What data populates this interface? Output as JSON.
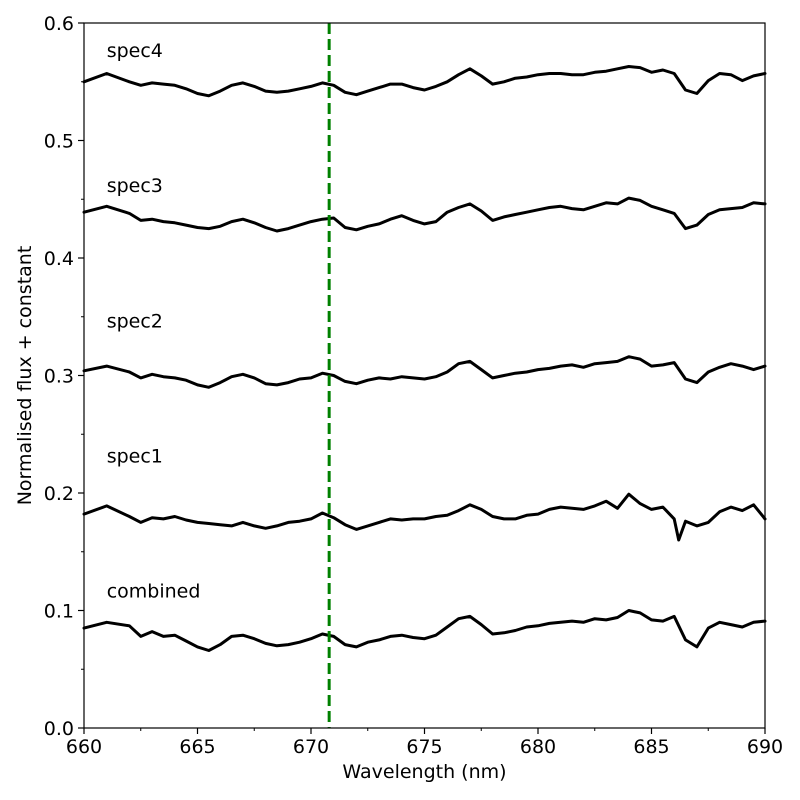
{
  "chart_data": {
    "type": "line",
    "title": "",
    "xlabel": "Wavelength (nm)",
    "ylabel": "Normalised flux + constant",
    "xlim": [
      660,
      690
    ],
    "ylim": [
      0.0,
      0.6
    ],
    "xticks": [
      660,
      665,
      670,
      675,
      680,
      685,
      690
    ],
    "xtick_labels": [
      "660",
      "665",
      "670",
      "675",
      "680",
      "685",
      "690"
    ],
    "yticks": [
      0.0,
      0.1,
      0.2,
      0.3,
      0.4,
      0.5,
      0.6
    ],
    "ytick_labels": [
      "0.0",
      "0.1",
      "0.2",
      "0.3",
      "0.4",
      "0.5",
      "0.6"
    ],
    "grid": false,
    "legend": "none",
    "line_color": "#000000",
    "vline": {
      "x": 670.8,
      "color": "#008000",
      "style": "dashed"
    },
    "series": [
      {
        "name": "combined",
        "label_at": [
          661,
          0.117
        ],
        "x": [
          660,
          661,
          662,
          662.5,
          663,
          663.5,
          664,
          664.5,
          665,
          665.5,
          666,
          666.5,
          667,
          667.5,
          668,
          668.5,
          669,
          669.5,
          670,
          670.5,
          671,
          671.5,
          672,
          672.5,
          673,
          673.5,
          674,
          674.5,
          675,
          675.5,
          676,
          676.5,
          677,
          677.5,
          678,
          678.5,
          679,
          679.5,
          680,
          680.5,
          681,
          681.5,
          682,
          682.5,
          683,
          683.5,
          684,
          684.5,
          685,
          685.5,
          686,
          686.5,
          687,
          687.5,
          688,
          688.5,
          689,
          689.5,
          690
        ],
        "y": [
          0.085,
          0.09,
          0.087,
          0.078,
          0.082,
          0.078,
          0.079,
          0.074,
          0.069,
          0.066,
          0.071,
          0.078,
          0.079,
          0.076,
          0.072,
          0.07,
          0.071,
          0.073,
          0.076,
          0.08,
          0.078,
          0.071,
          0.069,
          0.073,
          0.075,
          0.078,
          0.079,
          0.077,
          0.076,
          0.079,
          0.086,
          0.093,
          0.095,
          0.088,
          0.08,
          0.081,
          0.083,
          0.086,
          0.087,
          0.089,
          0.09,
          0.091,
          0.09,
          0.093,
          0.092,
          0.094,
          0.1,
          0.098,
          0.092,
          0.091,
          0.095,
          0.075,
          0.069,
          0.085,
          0.09,
          0.088,
          0.086,
          0.09,
          0.091
        ]
      },
      {
        "name": "spec1",
        "label_at": [
          661,
          0.232
        ],
        "x": [
          660,
          661,
          662,
          662.5,
          663,
          663.5,
          664,
          664.5,
          665,
          665.5,
          666,
          666.5,
          667,
          667.5,
          668,
          668.5,
          669,
          669.5,
          670,
          670.5,
          671,
          671.5,
          672,
          672.5,
          673,
          673.5,
          674,
          674.5,
          675,
          675.5,
          676,
          676.5,
          677,
          677.5,
          678,
          678.5,
          679,
          679.5,
          680,
          680.5,
          681,
          681.5,
          682,
          682.5,
          683,
          683.5,
          684,
          684.5,
          685,
          685.5,
          686,
          686.2,
          686.5,
          687,
          687.5,
          688,
          688.5,
          689,
          689.5,
          690
        ],
        "y": [
          0.182,
          0.189,
          0.18,
          0.175,
          0.179,
          0.178,
          0.18,
          0.177,
          0.175,
          0.174,
          0.173,
          0.172,
          0.175,
          0.172,
          0.17,
          0.172,
          0.175,
          0.176,
          0.178,
          0.183,
          0.179,
          0.173,
          0.169,
          0.172,
          0.175,
          0.178,
          0.177,
          0.178,
          0.178,
          0.18,
          0.181,
          0.185,
          0.19,
          0.186,
          0.18,
          0.178,
          0.178,
          0.181,
          0.182,
          0.186,
          0.188,
          0.187,
          0.186,
          0.189,
          0.193,
          0.187,
          0.199,
          0.191,
          0.186,
          0.188,
          0.178,
          0.16,
          0.176,
          0.172,
          0.175,
          0.184,
          0.188,
          0.185,
          0.19,
          0.178
        ]
      },
      {
        "name": "spec2",
        "label_at": [
          661,
          0.347
        ],
        "x": [
          660,
          661,
          662,
          662.5,
          663,
          663.5,
          664,
          664.5,
          665,
          665.5,
          666,
          666.5,
          667,
          667.5,
          668,
          668.5,
          669,
          669.5,
          670,
          670.5,
          671,
          671.5,
          672,
          672.5,
          673,
          673.5,
          674,
          674.5,
          675,
          675.5,
          676,
          676.5,
          677,
          677.5,
          678,
          678.5,
          679,
          679.5,
          680,
          680.5,
          681,
          681.5,
          682,
          682.5,
          683,
          683.5,
          684,
          684.5,
          685,
          685.5,
          686,
          686.5,
          687,
          687.5,
          688,
          688.5,
          689,
          689.5,
          690
        ],
        "y": [
          0.304,
          0.308,
          0.303,
          0.298,
          0.301,
          0.299,
          0.298,
          0.296,
          0.292,
          0.29,
          0.294,
          0.299,
          0.301,
          0.298,
          0.293,
          0.292,
          0.294,
          0.297,
          0.298,
          0.302,
          0.3,
          0.295,
          0.293,
          0.296,
          0.298,
          0.297,
          0.299,
          0.298,
          0.297,
          0.299,
          0.303,
          0.31,
          0.312,
          0.305,
          0.298,
          0.3,
          0.302,
          0.303,
          0.305,
          0.306,
          0.308,
          0.309,
          0.307,
          0.31,
          0.311,
          0.312,
          0.316,
          0.314,
          0.308,
          0.309,
          0.311,
          0.297,
          0.294,
          0.303,
          0.307,
          0.31,
          0.308,
          0.305,
          0.308
        ]
      },
      {
        "name": "spec3",
        "label_at": [
          661,
          0.462
        ],
        "x": [
          660,
          661,
          662,
          662.5,
          663,
          663.5,
          664,
          664.5,
          665,
          665.5,
          666,
          666.5,
          667,
          667.5,
          668,
          668.5,
          669,
          669.5,
          670,
          670.5,
          671,
          671.5,
          672,
          672.5,
          673,
          673.5,
          674,
          674.5,
          675,
          675.5,
          676,
          676.5,
          677,
          677.5,
          678,
          678.5,
          679,
          679.5,
          680,
          680.5,
          681,
          681.5,
          682,
          682.5,
          683,
          683.5,
          684,
          684.5,
          685,
          685.5,
          686,
          686.5,
          687,
          687.5,
          688,
          688.5,
          689,
          689.5,
          690
        ],
        "y": [
          0.439,
          0.444,
          0.438,
          0.432,
          0.433,
          0.431,
          0.43,
          0.428,
          0.426,
          0.425,
          0.427,
          0.431,
          0.433,
          0.43,
          0.426,
          0.423,
          0.425,
          0.428,
          0.431,
          0.433,
          0.434,
          0.426,
          0.424,
          0.427,
          0.429,
          0.433,
          0.436,
          0.432,
          0.429,
          0.431,
          0.439,
          0.443,
          0.446,
          0.44,
          0.432,
          0.435,
          0.437,
          0.439,
          0.441,
          0.443,
          0.444,
          0.442,
          0.441,
          0.444,
          0.447,
          0.446,
          0.451,
          0.449,
          0.444,
          0.441,
          0.438,
          0.425,
          0.428,
          0.437,
          0.441,
          0.442,
          0.443,
          0.447,
          0.446
        ]
      },
      {
        "name": "spec4",
        "label_at": [
          661,
          0.577
        ],
        "x": [
          660,
          661,
          662,
          662.5,
          663,
          663.5,
          664,
          664.5,
          665,
          665.5,
          666,
          666.5,
          667,
          667.5,
          668,
          668.5,
          669,
          669.5,
          670,
          670.5,
          671,
          671.5,
          672,
          672.5,
          673,
          673.5,
          674,
          674.5,
          675,
          675.5,
          676,
          676.5,
          677,
          677.5,
          678,
          678.5,
          679,
          679.5,
          680,
          680.5,
          681,
          681.5,
          682,
          682.5,
          683,
          683.5,
          684,
          684.5,
          685,
          685.5,
          686,
          686.5,
          687,
          687.5,
          688,
          688.5,
          689,
          689.5,
          690
        ],
        "y": [
          0.55,
          0.557,
          0.55,
          0.547,
          0.549,
          0.548,
          0.547,
          0.544,
          0.54,
          0.538,
          0.542,
          0.547,
          0.549,
          0.546,
          0.542,
          0.541,
          0.542,
          0.544,
          0.546,
          0.549,
          0.547,
          0.541,
          0.539,
          0.542,
          0.545,
          0.548,
          0.548,
          0.545,
          0.543,
          0.546,
          0.55,
          0.556,
          0.561,
          0.555,
          0.548,
          0.55,
          0.553,
          0.554,
          0.556,
          0.557,
          0.557,
          0.556,
          0.556,
          0.558,
          0.559,
          0.561,
          0.563,
          0.562,
          0.558,
          0.56,
          0.557,
          0.543,
          0.54,
          0.551,
          0.557,
          0.556,
          0.551,
          0.555,
          0.557
        ]
      }
    ]
  }
}
